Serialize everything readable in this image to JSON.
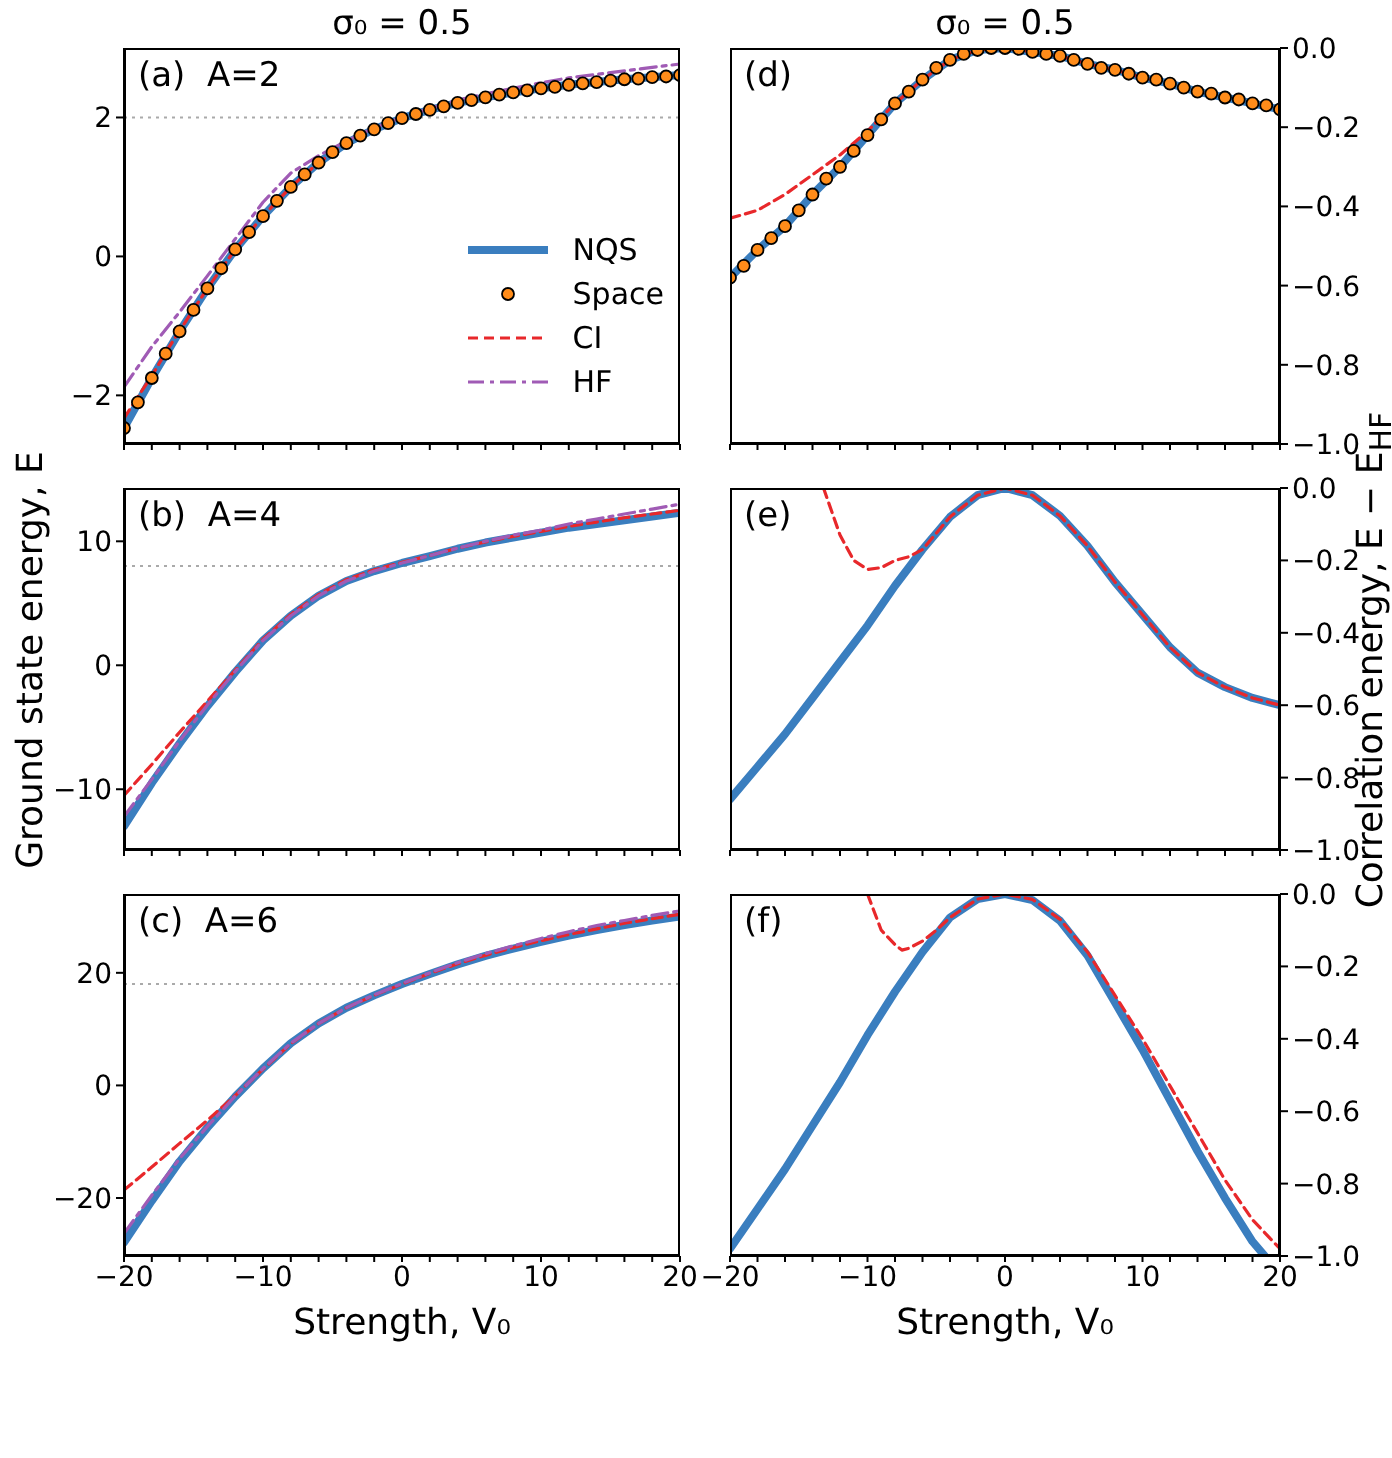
{
  "chart_data": [
    {
      "type": "line",
      "title": "σ₀ = 0.5",
      "annotations": [
        "(a)  A=2"
      ],
      "xlim": [
        -20,
        20
      ],
      "xticks": [
        {
          "value": -20,
          "label": null
        },
        {
          "value": -18,
          "label": null
        },
        {
          "value": -16,
          "label": null
        },
        {
          "value": -14,
          "label": null
        },
        {
          "value": -12,
          "label": null
        },
        {
          "value": -10,
          "label": null
        },
        {
          "value": -8,
          "label": null
        },
        {
          "value": -6,
          "label": null
        },
        {
          "value": -4,
          "label": null
        },
        {
          "value": -2,
          "label": null
        },
        0,
        {
          "value": 2,
          "label": null
        },
        {
          "value": 4,
          "label": null
        },
        {
          "value": 6,
          "label": null
        },
        {
          "value": 8,
          "label": null
        },
        10,
        {
          "value": 12,
          "label": null
        },
        {
          "value": 14,
          "label": null
        },
        {
          "value": 16,
          "label": null
        },
        {
          "value": 18,
          "label": null
        },
        20
      ],
      "ylim": [
        -2.7,
        3.0
      ],
      "yticks": [
        {
          "value": -2,
          "label": "−2"
        },
        0,
        2
      ],
      "tick_labels": "y",
      "legend": "bottom right",
      "ref_lines": [
        {
          "axis": "y",
          "value": 2,
          "color": "#aaaaaa",
          "line_style": "dotted"
        }
      ],
      "series": [
        {
          "name": "NQS",
          "type": "line",
          "color": "#3a7ebf",
          "x": [
            -20,
            -18,
            -16,
            -14,
            -12,
            -10,
            -8,
            -6,
            -4,
            -2,
            0,
            2,
            4,
            6,
            8,
            10,
            12,
            14,
            16,
            18,
            20
          ],
          "values": [
            -2.47,
            -1.75,
            -1.08,
            -0.46,
            0.1,
            0.58,
            1.0,
            1.35,
            1.63,
            1.83,
            1.99,
            2.11,
            2.21,
            2.29,
            2.36,
            2.42,
            2.47,
            2.51,
            2.55,
            2.58,
            2.61
          ]
        },
        {
          "name": "Space",
          "type": "scatter",
          "marker": "circle",
          "color": "#ff8c1a",
          "x": [
            -20,
            -19,
            -18,
            -17,
            -16,
            -15,
            -14,
            -13,
            -12,
            -11,
            -10,
            -9,
            -8,
            -7,
            -6,
            -5,
            -4,
            -3,
            -2,
            -1,
            0,
            1,
            2,
            3,
            4,
            5,
            6,
            7,
            8,
            9,
            10,
            11,
            12,
            13,
            14,
            15,
            16,
            17,
            18,
            19,
            20
          ],
          "values": [
            -2.47,
            -2.1,
            -1.75,
            -1.4,
            -1.08,
            -0.77,
            -0.46,
            -0.17,
            0.1,
            0.35,
            0.58,
            0.8,
            1.0,
            1.18,
            1.35,
            1.5,
            1.63,
            1.74,
            1.83,
            1.92,
            1.99,
            2.05,
            2.11,
            2.16,
            2.21,
            2.25,
            2.29,
            2.33,
            2.36,
            2.39,
            2.42,
            2.44,
            2.47,
            2.49,
            2.51,
            2.53,
            2.55,
            2.56,
            2.58,
            2.59,
            2.61
          ]
        },
        {
          "name": "CI",
          "type": "line",
          "line_style": "dashed",
          "color": "#e8282b",
          "x": [
            -20,
            -19,
            -18,
            -17,
            -16,
            -14,
            -12,
            -10,
            -8,
            -6,
            -4
          ],
          "values": [
            -2.33,
            -2.02,
            -1.72,
            -1.38,
            -1.07,
            -0.46,
            0.1,
            0.58,
            1.0,
            1.35,
            1.63
          ]
        },
        {
          "name": "HF",
          "type": "line",
          "line_style": "dashdot",
          "color": "#a05bb5",
          "x": [
            -20,
            -18,
            -16,
            -14,
            -12,
            -10,
            -8,
            -6,
            -4,
            -2,
            0,
            2,
            4,
            6,
            8,
            10,
            12,
            14,
            16,
            18,
            20
          ],
          "values": [
            -1.88,
            -1.3,
            -0.8,
            -0.28,
            0.25,
            0.78,
            1.2,
            1.45,
            1.66,
            1.85,
            2.0,
            2.13,
            2.25,
            2.34,
            2.42,
            2.5,
            2.57,
            2.62,
            2.67,
            2.72,
            2.77
          ]
        }
      ]
    },
    {
      "type": "line",
      "title": "σ₀ = 0.5",
      "annotations": [
        "(d)"
      ],
      "xlim": [
        -20,
        20
      ],
      "xticks": [
        {
          "value": -20,
          "label": null
        },
        {
          "value": -18,
          "label": null
        },
        {
          "value": -16,
          "label": null
        },
        {
          "value": -14,
          "label": null
        },
        {
          "value": -12,
          "label": null
        },
        {
          "value": -10,
          "label": null
        },
        {
          "value": -8,
          "label": null
        },
        {
          "value": -6,
          "label": null
        },
        {
          "value": -4,
          "label": null
        },
        {
          "value": -2,
          "label": null
        },
        0,
        {
          "value": 2,
          "label": null
        },
        {
          "value": 4,
          "label": null
        },
        {
          "value": 6,
          "label": null
        },
        {
          "value": 8,
          "label": null
        },
        10,
        {
          "value": 12,
          "label": null
        },
        {
          "value": 14,
          "label": null
        },
        {
          "value": 16,
          "label": null
        },
        {
          "value": 18,
          "label": null
        },
        20
      ],
      "ylim": [
        -1.0,
        0.0
      ],
      "yticks": [
        {
          "value": -1.0,
          "label": "−1.0"
        },
        {
          "value": -0.8,
          "label": "−0.8"
        },
        {
          "value": -0.6,
          "label": "−0.6"
        },
        {
          "value": -0.4,
          "label": "−0.4"
        },
        {
          "value": -0.2,
          "label": "−0.2"
        },
        {
          "value": 0,
          "label": "0.0"
        }
      ],
      "tick_labels": "y",
      "series": [
        {
          "type": "line",
          "color": "#3a7ebf",
          "x": [
            -20,
            -18,
            -16,
            -14,
            -12,
            -10,
            -8,
            -6,
            -4,
            -2,
            0,
            2,
            4,
            6,
            8,
            10,
            12,
            14,
            16,
            18,
            20
          ],
          "values": [
            -0.58,
            -0.51,
            -0.45,
            -0.37,
            -0.3,
            -0.22,
            -0.14,
            -0.08,
            -0.03,
            -0.005,
            0,
            -0.01,
            -0.02,
            -0.04,
            -0.055,
            -0.075,
            -0.09,
            -0.11,
            -0.125,
            -0.14,
            -0.155
          ]
        },
        {
          "type": "scatter",
          "marker": "circle",
          "color": "#ff8c1a",
          "x": [
            -20,
            -19,
            -18,
            -17,
            -16,
            -15,
            -14,
            -13,
            -12,
            -11,
            -10,
            -9,
            -8,
            -7,
            -6,
            -5,
            -4,
            -3,
            -2,
            -1,
            0,
            1,
            2,
            3,
            4,
            5,
            6,
            7,
            8,
            9,
            10,
            11,
            12,
            13,
            14,
            15,
            16,
            17,
            18,
            19,
            20
          ],
          "values": [
            -0.58,
            -0.55,
            -0.51,
            -0.48,
            -0.45,
            -0.41,
            -0.37,
            -0.33,
            -0.3,
            -0.26,
            -0.22,
            -0.18,
            -0.14,
            -0.11,
            -0.08,
            -0.05,
            -0.03,
            -0.015,
            -0.005,
            0,
            0,
            -0.002,
            -0.01,
            -0.015,
            -0.02,
            -0.03,
            -0.04,
            -0.05,
            -0.055,
            -0.065,
            -0.075,
            -0.08,
            -0.09,
            -0.1,
            -0.11,
            -0.115,
            -0.125,
            -0.13,
            -0.14,
            -0.145,
            -0.155
          ]
        },
        {
          "type": "line",
          "line_style": "dashed",
          "color": "#e8282b",
          "x": [
            -20,
            -18,
            -16,
            -14,
            -12,
            -10,
            -8,
            -6,
            -4,
            -2,
            0,
            2,
            4,
            6,
            8,
            10,
            12
          ],
          "values": [
            -0.43,
            -0.41,
            -0.37,
            -0.32,
            -0.27,
            -0.21,
            -0.14,
            -0.08,
            -0.03,
            -0.005,
            0,
            -0.01,
            -0.02,
            -0.04,
            -0.055,
            -0.075,
            -0.09
          ]
        }
      ]
    },
    {
      "type": "line",
      "ylabel": "Ground state energy, E",
      "annotations": [
        "(b)  A=4"
      ],
      "xlim": [
        -20,
        20
      ],
      "xticks": [
        {
          "value": -20,
          "label": null
        },
        {
          "value": -18,
          "label": null
        },
        {
          "value": -16,
          "label": null
        },
        {
          "value": -14,
          "label": null
        },
        {
          "value": -12,
          "label": null
        },
        {
          "value": -10,
          "label": null
        },
        {
          "value": -8,
          "label": null
        },
        {
          "value": -6,
          "label": null
        },
        {
          "value": -4,
          "label": null
        },
        {
          "value": -2,
          "label": null
        },
        0,
        {
          "value": 2,
          "label": null
        },
        {
          "value": 4,
          "label": null
        },
        {
          "value": 6,
          "label": null
        },
        {
          "value": 8,
          "label": null
        },
        10,
        {
          "value": 12,
          "label": null
        },
        {
          "value": 14,
          "label": null
        },
        {
          "value": 16,
          "label": null
        },
        {
          "value": 18,
          "label": null
        },
        20
      ],
      "ylim": [
        -14.9,
        14.3
      ],
      "yticks": [
        {
          "value": -10,
          "label": "−10"
        },
        0,
        10
      ],
      "tick_labels": "y",
      "ref_lines": [
        {
          "axis": "y",
          "value": 8,
          "color": "#aaaaaa",
          "line_style": "dotted"
        }
      ],
      "series": [
        {
          "type": "line",
          "color": "#3a7ebf",
          "x": [
            -20,
            -18,
            -16,
            -14,
            -12,
            -10,
            -8,
            -6,
            -4,
            -2,
            0,
            2,
            4,
            6,
            8,
            10,
            12,
            14,
            16,
            18,
            20
          ],
          "values": [
            -13.0,
            -9.5,
            -6.3,
            -3.3,
            -0.55,
            2.0,
            4.0,
            5.6,
            6.8,
            7.6,
            8.25,
            8.8,
            9.4,
            9.9,
            10.3,
            10.7,
            11.1,
            11.4,
            11.7,
            12.0,
            12.3
          ]
        },
        {
          "type": "line",
          "line_style": "dashed",
          "color": "#e8282b",
          "x": [
            -20,
            -18,
            -16,
            -14,
            -12,
            -10,
            -8,
            -6,
            -4,
            -2,
            0,
            2,
            4,
            6,
            8,
            10,
            12,
            14,
            16,
            18,
            20
          ],
          "values": [
            -10.5,
            -8.0,
            -5.4,
            -2.9,
            -0.4,
            2.1,
            4.1,
            5.7,
            6.9,
            7.7,
            8.3,
            8.85,
            9.45,
            9.95,
            10.4,
            10.8,
            11.2,
            11.55,
            11.9,
            12.2,
            12.5
          ]
        },
        {
          "type": "line",
          "line_style": "dashdot",
          "color": "#a05bb5",
          "x": [
            -20,
            -18,
            -16,
            -14,
            -12,
            -10,
            -8,
            -6,
            -4,
            -2,
            0,
            2,
            4,
            6,
            8,
            10,
            12,
            14,
            16,
            18,
            20
          ],
          "values": [
            -12.2,
            -9.2,
            -6.1,
            -3.2,
            -0.5,
            2.0,
            4.0,
            5.6,
            6.8,
            7.6,
            8.25,
            8.85,
            9.45,
            10.0,
            10.5,
            10.9,
            11.4,
            11.8,
            12.2,
            12.6,
            13.0
          ]
        }
      ]
    },
    {
      "type": "line",
      "ylabel": "Correlation energy, E − E$_{HF}$",
      "annotations": [
        "(e)"
      ],
      "xlim": [
        -20,
        20
      ],
      "xticks": [
        {
          "value": -20,
          "label": null
        },
        {
          "value": -18,
          "label": null
        },
        {
          "value": -16,
          "label": null
        },
        {
          "value": -14,
          "label": null
        },
        {
          "value": -12,
          "label": null
        },
        {
          "value": -10,
          "label": null
        },
        {
          "value": -8,
          "label": null
        },
        {
          "value": -6,
          "label": null
        },
        {
          "value": -4,
          "label": null
        },
        {
          "value": -2,
          "label": null
        },
        0,
        {
          "value": 2,
          "label": null
        },
        {
          "value": 4,
          "label": null
        },
        {
          "value": 6,
          "label": null
        },
        {
          "value": 8,
          "label": null
        },
        10,
        {
          "value": 12,
          "label": null
        },
        {
          "value": 14,
          "label": null
        },
        {
          "value": 16,
          "label": null
        },
        {
          "value": 18,
          "label": null
        },
        20
      ],
      "ylim": [
        -1.0,
        0.0
      ],
      "yticks": [
        {
          "value": -1.0,
          "label": "−1.0"
        },
        {
          "value": -0.8,
          "label": "−0.8"
        },
        {
          "value": -0.6,
          "label": "−0.6"
        },
        {
          "value": -0.4,
          "label": "−0.4"
        },
        {
          "value": -0.2,
          "label": "−0.2"
        },
        {
          "value": 0,
          "label": "0.0"
        }
      ],
      "tick_labels": "y",
      "series": [
        {
          "type": "line",
          "color": "#3a7ebf",
          "x": [
            -20,
            -18,
            -16,
            -14,
            -12,
            -10,
            -8,
            -6,
            -4,
            -2,
            0,
            2,
            4,
            6,
            8,
            10,
            12,
            14,
            16,
            18,
            20
          ],
          "values": [
            -0.86,
            -0.77,
            -0.68,
            -0.58,
            -0.48,
            -0.38,
            -0.27,
            -0.17,
            -0.08,
            -0.02,
            0,
            -0.02,
            -0.077,
            -0.16,
            -0.26,
            -0.35,
            -0.44,
            -0.51,
            -0.55,
            -0.58,
            -0.6
          ]
        },
        {
          "type": "line",
          "line_style": "dashed",
          "color": "#e8282b",
          "x": [
            -13.2,
            -12,
            -11,
            -10,
            -9,
            -8,
            -7,
            -6,
            -4,
            -2,
            0,
            2,
            4,
            6,
            8,
            10,
            12,
            14,
            16,
            18,
            20
          ],
          "values": [
            0,
            -0.13,
            -0.2,
            -0.225,
            -0.22,
            -0.2,
            -0.19,
            -0.17,
            -0.08,
            -0.02,
            0,
            -0.02,
            -0.077,
            -0.16,
            -0.26,
            -0.35,
            -0.44,
            -0.51,
            -0.55,
            -0.58,
            -0.6
          ]
        }
      ]
    },
    {
      "type": "line",
      "xlabel": "Strength, V₀",
      "annotations": [
        "(c)  A=6"
      ],
      "xlim": [
        -20,
        20
      ],
      "xticks": [
        {
          "value": -20,
          "label": "−20"
        },
        {
          "value": -18,
          "label": null
        },
        {
          "value": -16,
          "label": null
        },
        {
          "value": -14,
          "label": null
        },
        {
          "value": -12,
          "label": null
        },
        {
          "value": -10,
          "label": "−10"
        },
        {
          "value": -8,
          "label": null
        },
        {
          "value": -6,
          "label": null
        },
        {
          "value": -4,
          "label": null
        },
        {
          "value": -2,
          "label": null
        },
        0,
        {
          "value": 2,
          "label": null
        },
        {
          "value": 4,
          "label": null
        },
        {
          "value": 6,
          "label": null
        },
        {
          "value": 8,
          "label": null
        },
        10,
        {
          "value": 12,
          "label": null
        },
        {
          "value": 14,
          "label": null
        },
        {
          "value": 16,
          "label": null
        },
        {
          "value": 18,
          "label": null
        },
        20
      ],
      "ylim": [
        -30.3,
        34.0
      ],
      "yticks": [
        {
          "value": -20,
          "label": "−20"
        },
        0,
        20
      ],
      "ref_lines": [
        {
          "axis": "y",
          "value": 18,
          "color": "#aaaaaa",
          "line_style": "dotted"
        }
      ],
      "series": [
        {
          "type": "line",
          "color": "#3a7ebf",
          "x": [
            -20,
            -18,
            -16,
            -14,
            -12,
            -10,
            -8,
            -6,
            -4,
            -2,
            0,
            2,
            4,
            6,
            8,
            10,
            12,
            14,
            16,
            18,
            20
          ],
          "values": [
            -27.9,
            -20.5,
            -13.5,
            -7.5,
            -2.0,
            3.0,
            7.5,
            11.0,
            13.8,
            16.0,
            18.0,
            19.8,
            21.5,
            23.0,
            24.3,
            25.5,
            26.6,
            27.6,
            28.5,
            29.3,
            30.0
          ]
        },
        {
          "type": "line",
          "line_style": "dashed",
          "color": "#e8282b",
          "x": [
            -20,
            -18,
            -16,
            -14,
            -12,
            -10,
            -8,
            -6,
            -4,
            -2,
            0,
            2,
            4,
            6,
            8,
            10,
            12,
            14,
            16,
            18,
            20
          ],
          "values": [
            -18.6,
            -14.5,
            -10.3,
            -6.2,
            -1.8,
            2.9,
            7.4,
            11.0,
            13.8,
            16.0,
            18.0,
            19.9,
            21.6,
            23.1,
            24.5,
            25.7,
            26.8,
            27.8,
            28.8,
            29.6,
            30.4
          ]
        },
        {
          "type": "line",
          "line_style": "dashdot",
          "color": "#a05bb5",
          "x": [
            -20,
            -18,
            -16,
            -14,
            -12,
            -10,
            -8,
            -6,
            -4,
            -2,
            0,
            2,
            4,
            6,
            8,
            10,
            12,
            14,
            16,
            18,
            20
          ],
          "values": [
            -26.3,
            -19.5,
            -13.0,
            -7.3,
            -1.9,
            3.0,
            7.5,
            11.0,
            13.8,
            16.1,
            18.1,
            20.0,
            21.8,
            23.4,
            24.8,
            26.1,
            27.3,
            28.4,
            29.3,
            30.2,
            31.0
          ]
        }
      ]
    },
    {
      "type": "line",
      "xlabel": "Strength, V₀",
      "annotations": [
        "(f)"
      ],
      "xlim": [
        -20,
        20
      ],
      "xticks": [
        {
          "value": -20,
          "label": "−20"
        },
        {
          "value": -18,
          "label": null
        },
        {
          "value": -16,
          "label": null
        },
        {
          "value": -14,
          "label": null
        },
        {
          "value": -12,
          "label": null
        },
        {
          "value": -10,
          "label": "−10"
        },
        {
          "value": -8,
          "label": null
        },
        {
          "value": -6,
          "label": null
        },
        {
          "value": -4,
          "label": null
        },
        {
          "value": -2,
          "label": null
        },
        0,
        {
          "value": 2,
          "label": null
        },
        {
          "value": 4,
          "label": null
        },
        {
          "value": 6,
          "label": null
        },
        {
          "value": 8,
          "label": null
        },
        10,
        {
          "value": 12,
          "label": null
        },
        {
          "value": 14,
          "label": null
        },
        {
          "value": 16,
          "label": null
        },
        {
          "value": 18,
          "label": null
        },
        20
      ],
      "ylim": [
        -1.0,
        0.0
      ],
      "yticks": [
        {
          "value": -1.0,
          "label": "−1.0"
        },
        {
          "value": -0.8,
          "label": "−0.8"
        },
        {
          "value": -0.6,
          "label": "−0.6"
        },
        {
          "value": -0.4,
          "label": "−0.4"
        },
        {
          "value": -0.2,
          "label": "−0.2"
        },
        {
          "value": 0,
          "label": "0.0"
        }
      ],
      "series": [
        {
          "type": "line",
          "color": "#3a7ebf",
          "x": [
            -20,
            -18,
            -16,
            -14,
            -12,
            -10,
            -8,
            -6,
            -4,
            -2,
            0,
            2,
            4,
            6,
            8,
            10,
            12,
            14,
            16,
            18,
            18.9
          ],
          "values": [
            -0.98,
            -0.87,
            -0.76,
            -0.64,
            -0.52,
            -0.39,
            -0.27,
            -0.16,
            -0.065,
            -0.014,
            0,
            -0.017,
            -0.074,
            -0.17,
            -0.3,
            -0.43,
            -0.57,
            -0.71,
            -0.84,
            -0.96,
            -1.0
          ]
        },
        {
          "type": "line",
          "line_style": "dashed",
          "color": "#e8282b",
          "x": [
            -10,
            -9,
            -8,
            -7.5,
            -7,
            -6,
            -5,
            -4,
            -2,
            0,
            2,
            4,
            6,
            8,
            10,
            12,
            14,
            16,
            18,
            20
          ],
          "values": [
            0,
            -0.1,
            -0.14,
            -0.155,
            -0.15,
            -0.13,
            -0.1,
            -0.065,
            -0.014,
            0,
            -0.015,
            -0.07,
            -0.16,
            -0.28,
            -0.4,
            -0.53,
            -0.66,
            -0.79,
            -0.9,
            -0.98
          ]
        }
      ]
    }
  ]
}
